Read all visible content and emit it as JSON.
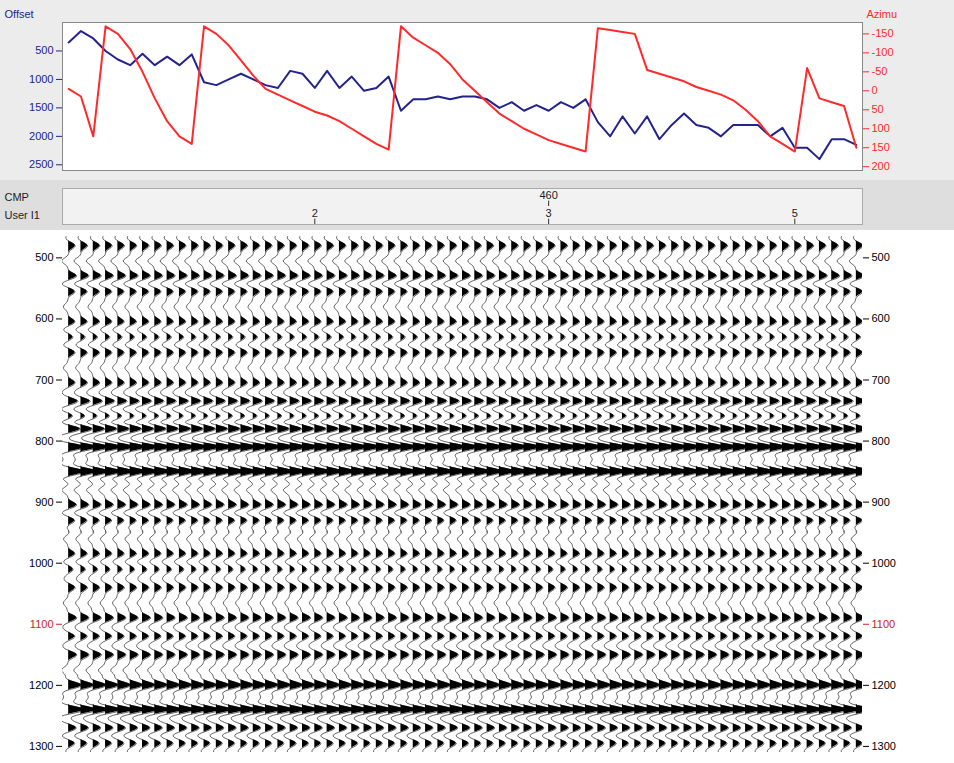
{
  "chart_data": [
    {
      "type": "line",
      "x": [
        1,
        2,
        3,
        4,
        5,
        6,
        7,
        8,
        9,
        10,
        11,
        12,
        13,
        14,
        15,
        16,
        17,
        18,
        19,
        20,
        21,
        22,
        23,
        24,
        25,
        26,
        27,
        28,
        29,
        30,
        31,
        32,
        33,
        34,
        35,
        36,
        37,
        38,
        39,
        40,
        41,
        42,
        43,
        44,
        45,
        46,
        47,
        48,
        49,
        50,
        51,
        52,
        53,
        54,
        55,
        56,
        57,
        58,
        59,
        60,
        61,
        62,
        63,
        64,
        65
      ],
      "xlim": [
        0.5,
        65.5
      ],
      "ylim": [
        0,
        2600
      ],
      "yticks": [
        500,
        1000,
        1500,
        2000,
        2500
      ],
      "y2lim": [
        -180,
        210
      ],
      "y2ticks": [
        -150,
        -100,
        -50,
        0,
        50,
        100,
        150,
        200
      ],
      "tick_labels": "y",
      "series": [
        {
          "name": "Offset",
          "color": "#23238e",
          "values": [
            350,
            150,
            280,
            500,
            650,
            750,
            550,
            750,
            600,
            750,
            560,
            1050,
            1100,
            1000,
            900,
            1000,
            1100,
            1150,
            850,
            900,
            1150,
            850,
            1150,
            950,
            1200,
            1150,
            950,
            1550,
            1350,
            1350,
            1300,
            1350,
            1300,
            1300,
            1350,
            1500,
            1400,
            1550,
            1450,
            1550,
            1400,
            1500,
            1350,
            1750,
            2000,
            1650,
            1950,
            1650,
            2050,
            1800,
            1600,
            1800,
            1850,
            2000,
            1800,
            1800,
            1800,
            2000,
            1850,
            2200,
            2200,
            2400,
            2050,
            2050,
            2150
          ]
        },
        {
          "name": "Azimu",
          "color": "#ff2a2a",
          "axis": "y2",
          "values": [
            -5,
            15,
            120,
            -170,
            -150,
            -110,
            -50,
            20,
            80,
            120,
            140,
            -170,
            -150,
            -120,
            -80,
            -40,
            -5,
            10,
            25,
            40,
            55,
            65,
            80,
            100,
            120,
            140,
            155,
            -170,
            -140,
            -120,
            -100,
            -70,
            -30,
            0,
            30,
            60,
            80,
            100,
            115,
            130,
            140,
            150,
            160,
            -165,
            -160,
            -155,
            -150,
            -55,
            -45,
            -35,
            -25,
            -10,
            0,
            10,
            25,
            50,
            80,
            120,
            140,
            160,
            -60,
            20,
            30,
            40,
            150
          ]
        }
      ]
    },
    {
      "type": "wiggle",
      "x": [
        1,
        2,
        3,
        4,
        5,
        6,
        7,
        8,
        9,
        10,
        11,
        12,
        13,
        14,
        15,
        16,
        17,
        18,
        19,
        20,
        21,
        22,
        23,
        24,
        25,
        26,
        27,
        28,
        29,
        30,
        31,
        32,
        33,
        34,
        35,
        36,
        37,
        38,
        39,
        40,
        41,
        42,
        43,
        44,
        45,
        46,
        47,
        48,
        49,
        50,
        51,
        52,
        53,
        54,
        55,
        56,
        57,
        58,
        59,
        60,
        61,
        62,
        63,
        64,
        65
      ],
      "xlim": [
        0.5,
        65.5
      ],
      "ylim": [
        465,
        1310
      ],
      "yticks": [
        500,
        600,
        700,
        800,
        900,
        1000,
        {
          "value": 1100,
          "label": "1100",
          "color": "#cc2222"
        },
        1200,
        1300
      ],
      "color": "#000000",
      "events": {
        "time": [
          480,
          505,
          530,
          555,
          580,
          605,
          630,
          655,
          680,
          705,
          735,
          760,
          780,
          810,
          850,
          880,
          905,
          930,
          960,
          985,
          1010,
          1040,
          1065,
          1090,
          1120,
          1150,
          1175,
          1200,
          1240,
          1270,
          1295
        ],
        "amplitude": [
          0.4,
          -0.4,
          0.5,
          0.4,
          -0.3,
          0.4,
          0.3,
          0.4,
          -0.3,
          0.4,
          0.6,
          0.4,
          0.8,
          1.0,
          1.0,
          -0.4,
          0.5,
          0.4,
          -0.3,
          0.4,
          0.3,
          0.4,
          -0.3,
          0.5,
          0.4,
          0.5,
          -0.4,
          0.8,
          1.0,
          0.5,
          0.4
        ]
      },
      "header": [
        {
          "label": "CMP",
          "ticks": [
            {
              "value": 40,
              "label": "460"
            }
          ]
        },
        {
          "label": "User I1",
          "ticks": [
            {
              "value": 21,
              "label": "2"
            },
            {
              "value": 40,
              "label": "3"
            },
            {
              "value": 60,
              "label": "5"
            }
          ]
        }
      ]
    }
  ]
}
